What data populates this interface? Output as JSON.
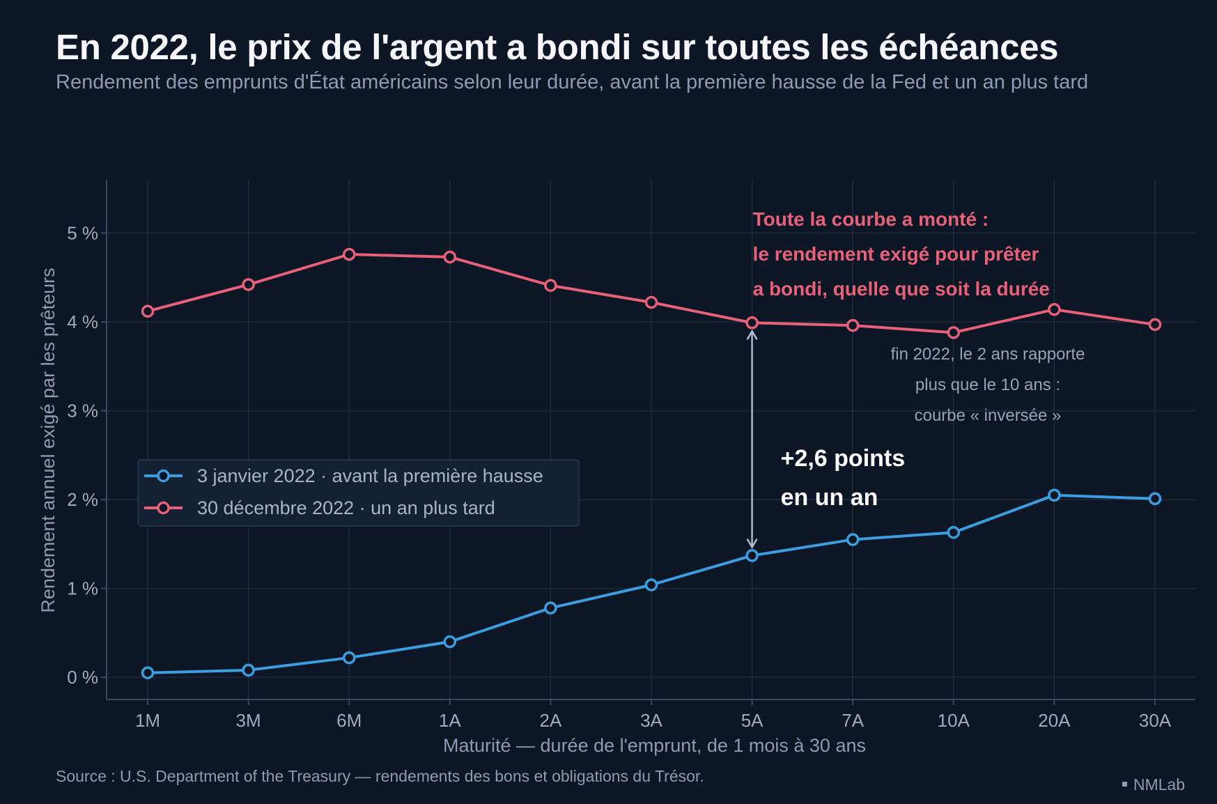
{
  "header": {
    "title": "En 2022, le prix de l'argent a bondi sur toutes les échéances",
    "subtitle": "Rendement des emprunts d'État américains selon leur durée, avant la première hausse de la Fed et un an plus tard"
  },
  "footer": {
    "source": "Source : U.S. Department of the Treasury — rendements des bons et obligations du Trésor.",
    "brand": "NMLab"
  },
  "chart_data": {
    "type": "line",
    "categories": [
      "1M",
      "3M",
      "6M",
      "1A",
      "2A",
      "3A",
      "5A",
      "7A",
      "10A",
      "20A",
      "30A"
    ],
    "xlabel": "Maturité  —  durée de l'emprunt, de 1 mois à 30 ans",
    "ylabel": "Rendement annuel exigé par les prêteurs",
    "ylim": [
      -0.25,
      5.6
    ],
    "yticks": [
      0,
      1,
      2,
      3,
      4,
      5
    ],
    "ytick_labels": [
      "0 %",
      "1 %",
      "2 %",
      "3 %",
      "4 %",
      "5 %"
    ],
    "grid": true,
    "legend_position": "center-left",
    "series": [
      {
        "name": "3 janvier 2022",
        "detail": "avant la première hausse",
        "color": "#3b9ee0",
        "values": [
          0.05,
          0.08,
          0.22,
          0.4,
          0.78,
          1.04,
          1.37,
          1.55,
          1.63,
          2.05,
          2.01
        ]
      },
      {
        "name": "30 décembre 2022",
        "detail": "un an plus tard",
        "color": "#e8607a",
        "values": [
          4.12,
          4.42,
          4.76,
          4.73,
          4.41,
          4.22,
          3.99,
          3.96,
          3.88,
          4.14,
          3.97
        ]
      }
    ],
    "legend_separator": "·",
    "annotations": {
      "headline_lines": [
        "Toute la courbe a monté :",
        "le rendement exigé pour prêter",
        "a bondi, quelle que soit la durée"
      ],
      "delta_lines": [
        "+2,6 points",
        "en un an"
      ],
      "delta_category": "5A",
      "inversion_lines": [
        "fin 2022, le 2 ans rapporte",
        "plus que le 10 ans :",
        "courbe « inversée »"
      ]
    }
  },
  "colors": {
    "background": "#0c1624",
    "grid": "#1f2c3f",
    "axis": "#3a4a60",
    "arrow": "#aebbd0"
  }
}
